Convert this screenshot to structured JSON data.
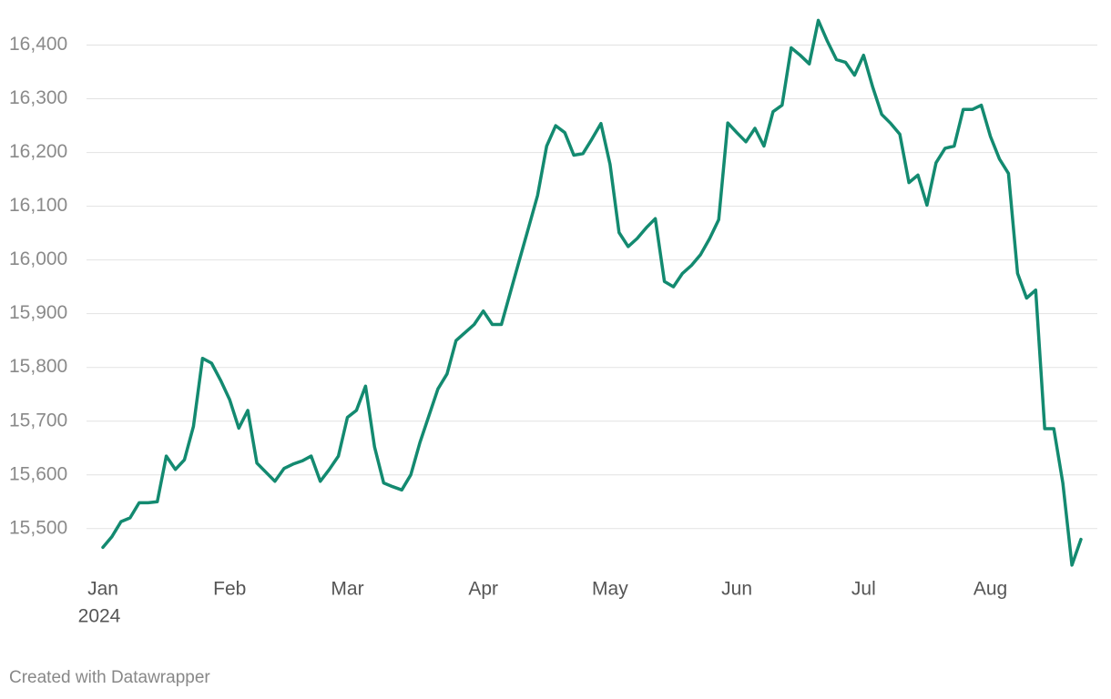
{
  "chart_data": {
    "type": "line",
    "categories": [
      "Jan",
      null,
      null,
      null,
      null,
      null,
      null,
      null,
      null,
      null,
      null,
      null,
      null,
      null,
      "Feb",
      null,
      null,
      null,
      null,
      null,
      null,
      null,
      null,
      null,
      null,
      null,
      null,
      "Mar",
      null,
      null,
      null,
      null,
      null,
      null,
      null,
      null,
      null,
      null,
      null,
      null,
      null,
      null,
      "Apr",
      null,
      null,
      null,
      null,
      null,
      null,
      null,
      null,
      null,
      null,
      null,
      null,
      null,
      "May",
      null,
      null,
      null,
      null,
      null,
      null,
      null,
      null,
      null,
      null,
      null,
      null,
      null,
      "Jun",
      null,
      null,
      null,
      null,
      null,
      null,
      null,
      null,
      null,
      null,
      null,
      null,
      null,
      "Jul",
      null,
      null,
      null,
      null,
      null,
      null,
      null,
      null,
      null,
      null,
      null,
      null,
      null,
      "Aug",
      null,
      null,
      null,
      null,
      null,
      null,
      null,
      null,
      null,
      null
    ],
    "year_label": "2024",
    "values": [
      15465,
      15485,
      15513,
      15520,
      15548,
      15548,
      15550,
      15635,
      15610,
      15628,
      15690,
      15817,
      15808,
      15776,
      15740,
      15687,
      15720,
      15622,
      15605,
      15588,
      15612,
      15620,
      15626,
      15635,
      15588,
      15610,
      15635,
      15707,
      15720,
      15765,
      15652,
      15585,
      15578,
      15572,
      15600,
      15660,
      15710,
      15760,
      15788,
      15850,
      15865,
      15880,
      15905,
      15880,
      15880,
      15940,
      16000,
      16060,
      16120,
      16212,
      16250,
      16237,
      16195,
      16198,
      16225,
      16254,
      16178,
      16051,
      16025,
      16040,
      16060,
      16077,
      15960,
      15950,
      15975,
      15990,
      16010,
      16040,
      16075,
      16255,
      16237,
      16220,
      16245,
      16212,
      16276,
      16288,
      16395,
      16381,
      16365,
      16446,
      16407,
      16373,
      16368,
      16344,
      16381,
      16322,
      16271,
      16254,
      16234,
      16144,
      16158,
      16102,
      16181,
      16208,
      16212,
      16280,
      16280,
      16288,
      16230,
      16188,
      16161,
      15975,
      15929,
      15944,
      15686,
      15686,
      15585,
      15432,
      15480
    ],
    "color": "#138a70",
    "ylim": [
      15420,
      16450
    ],
    "yticks": [
      {
        "value": 15500,
        "label": "15,500"
      },
      {
        "value": 15600,
        "label": "15,600"
      },
      {
        "value": 15700,
        "label": "15,700"
      },
      {
        "value": 15800,
        "label": "15,800"
      },
      {
        "value": 15900,
        "label": "15,900"
      },
      {
        "value": 16000,
        "label": "16,000"
      },
      {
        "value": 16100,
        "label": "16,100"
      },
      {
        "value": 16200,
        "label": "16,200"
      },
      {
        "value": 16300,
        "label": "16,300"
      },
      {
        "value": 16400,
        "label": "16,400"
      }
    ],
    "grid": true,
    "source": "Created with Datawrapper"
  }
}
